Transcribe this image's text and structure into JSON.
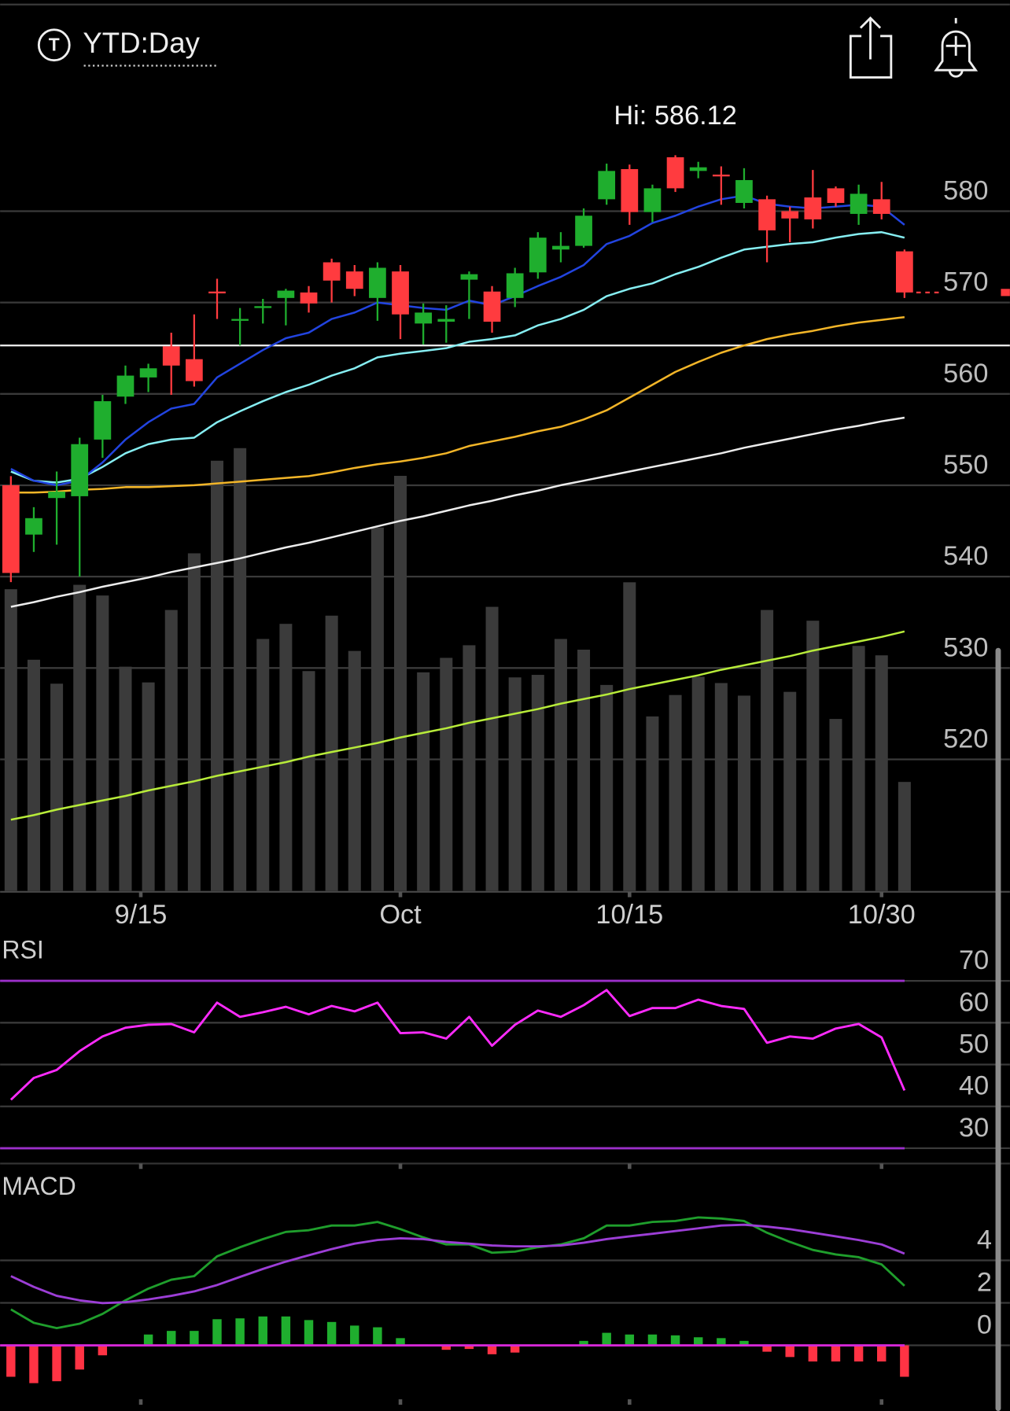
{
  "header": {
    "title": "YTD:Day"
  },
  "chart_data": [
    {
      "type": "candlestick",
      "annotation": "Hi: 586.12",
      "open": [
        550.0,
        544.6,
        548.6,
        548.8,
        555.0,
        559.7,
        561.8,
        565.2,
        563.8,
        571.2,
        568.0,
        569.4,
        570.5,
        571.1,
        574.4,
        573.4,
        570.5,
        573.4,
        567.7,
        567.9,
        572.5,
        571.2,
        570.5,
        573.3,
        575.8,
        576.2,
        581.3,
        584.6,
        579.9,
        585.9,
        584.4,
        584.0,
        580.9,
        581.3,
        580.0,
        581.5,
        582.5,
        579.7,
        581.3,
        575.6
      ],
      "high": [
        551.0,
        547.6,
        551.5,
        555.2,
        559.9,
        563.1,
        563.3,
        566.7,
        568.7,
        572.6,
        569.4,
        570.4,
        571.5,
        571.8,
        574.8,
        574.1,
        574.4,
        574.1,
        569.9,
        569.7,
        573.4,
        571.8,
        573.8,
        577.7,
        577.7,
        580.3,
        585.2,
        585.1,
        582.9,
        586.12,
        585.4,
        584.9,
        584.7,
        581.7,
        580.5,
        584.5,
        582.7,
        582.9,
        583.2,
        575.8
      ],
      "low": [
        539.4,
        542.7,
        543.5,
        540.0,
        553.0,
        558.9,
        560.2,
        559.9,
        560.8,
        568.2,
        565.3,
        567.7,
        567.5,
        568.9,
        570.0,
        570.7,
        568.0,
        566.0,
        565.4,
        565.6,
        568.2,
        566.7,
        569.5,
        572.6,
        574.4,
        576.0,
        580.7,
        578.5,
        578.8,
        582.1,
        583.6,
        580.7,
        580.3,
        574.4,
        576.6,
        578.1,
        580.5,
        578.5,
        579.1,
        570.5
      ],
      "close": [
        540.4,
        546.4,
        549.3,
        554.5,
        559.2,
        562.0,
        562.8,
        563.1,
        561.4,
        571.0,
        568.2,
        569.6,
        571.3,
        569.9,
        572.4,
        571.5,
        573.8,
        568.7,
        568.9,
        568.2,
        573.1,
        567.9,
        573.2,
        577.1,
        576.2,
        579.5,
        584.4,
        579.9,
        582.5,
        582.5,
        584.8,
        583.8,
        583.4,
        577.9,
        579.2,
        579.1,
        580.9,
        581.9,
        579.7,
        571.1
      ],
      "volume": [
        47.9,
        36.7,
        32.9,
        48.6,
        46.9,
        35.6,
        33.1,
        44.6,
        53.6,
        68.3,
        70.3,
        40.0,
        42.4,
        34.9,
        43.7,
        38.1,
        57.7,
        65.9,
        34.7,
        37.0,
        39.0,
        45.1,
        33.9,
        34.3,
        40.0,
        38.3,
        32.7,
        49.0,
        27.7,
        31.1,
        34.0,
        33.0,
        31.0,
        44.6,
        31.6,
        42.9,
        27.3,
        38.9,
        37.4,
        17.3
      ],
      "lines": [
        {
          "color": "#2244e0",
          "values": [
            551.8,
            550.5,
            550.0,
            550.5,
            552.5,
            555.0,
            556.9,
            558.4,
            558.9,
            561.8,
            563.3,
            564.8,
            566.1,
            566.7,
            568.2,
            568.9,
            570.0,
            569.7,
            569.4,
            569.2,
            570.2,
            569.7,
            570.7,
            571.8,
            572.8,
            574.1,
            576.4,
            577.3,
            578.7,
            579.5,
            580.5,
            581.3,
            581.7,
            580.8,
            580.5,
            580.3,
            580.5,
            580.7,
            580.5,
            578.5
          ]
        },
        {
          "color": "#86eef2",
          "values": [
            551.5,
            550.5,
            550.3,
            550.7,
            552.0,
            553.5,
            554.5,
            555.0,
            555.2,
            556.9,
            558.1,
            559.2,
            560.2,
            561.0,
            562.0,
            562.8,
            564.0,
            564.4,
            564.7,
            565.0,
            565.7,
            566.0,
            566.4,
            567.5,
            568.2,
            569.2,
            570.7,
            571.5,
            572.1,
            573.1,
            573.9,
            574.9,
            575.8,
            576.1,
            576.4,
            576.6,
            577.1,
            577.5,
            577.7,
            577.1
          ]
        },
        {
          "color": "#f2b528",
          "values": [
            549.2,
            549.2,
            549.3,
            549.5,
            549.6,
            549.8,
            549.8,
            549.9,
            550.0,
            550.2,
            550.4,
            550.6,
            550.8,
            551.0,
            551.4,
            551.9,
            552.3,
            552.6,
            553.0,
            553.5,
            554.3,
            554.8,
            555.3,
            555.9,
            556.4,
            557.2,
            558.2,
            559.6,
            561.0,
            562.4,
            563.5,
            564.5,
            565.3,
            566.0,
            566.5,
            566.9,
            567.4,
            567.8,
            568.1,
            568.4
          ]
        },
        {
          "color": "#ececec",
          "values": [
            536.7,
            537.2,
            537.8,
            538.3,
            538.9,
            539.4,
            539.9,
            540.5,
            541.0,
            541.5,
            542.0,
            542.6,
            543.2,
            543.7,
            544.3,
            544.9,
            545.5,
            546.1,
            546.6,
            547.2,
            547.8,
            548.3,
            548.9,
            549.4,
            550.0,
            550.5,
            551.0,
            551.5,
            552.0,
            552.5,
            553.0,
            553.5,
            554.1,
            554.6,
            555.1,
            555.6,
            556.1,
            556.5,
            557.0,
            557.4
          ]
        },
        {
          "color": "#b8ec3a",
          "values": [
            513.4,
            513.9,
            514.5,
            515.0,
            515.5,
            516.0,
            516.6,
            517.1,
            517.6,
            518.2,
            518.7,
            519.2,
            519.7,
            520.3,
            520.8,
            521.3,
            521.8,
            522.4,
            522.9,
            523.4,
            524.0,
            524.5,
            525.0,
            525.5,
            526.1,
            526.6,
            527.1,
            527.7,
            528.2,
            528.7,
            529.2,
            529.8,
            530.3,
            530.8,
            531.3,
            531.9,
            532.4,
            532.9,
            533.4,
            534.0
          ]
        }
      ],
      "hline": 565.3,
      "up_color": "#1fae2e",
      "down_color": "#ff3b3f",
      "volume_color": "#3b3b3b",
      "xlim": [
        -0.47,
        43.6
      ],
      "xticks": [
        {
          "value": 5.67,
          "label": "9/15"
        },
        {
          "value": 17,
          "label": "Oct"
        },
        {
          "value": 27,
          "label": "10/15"
        },
        {
          "value": 38,
          "label": "10/30"
        }
      ],
      "ylim": [
        506,
        592
      ],
      "yticks": [
        520,
        530,
        540,
        550,
        560,
        570,
        580
      ],
      "grid": true
    },
    {
      "type": "line",
      "title": "RSI",
      "color": "#ff2bff",
      "values": [
        41.6,
        46.8,
        48.7,
        53.2,
        56.7,
        58.8,
        59.5,
        59.7,
        57.7,
        64.8,
        61.4,
        62.5,
        63.8,
        62.0,
        64.0,
        62.7,
        64.8,
        57.5,
        57.7,
        56.2,
        61.4,
        54.5,
        59.5,
        62.9,
        61.4,
        64.2,
        67.8,
        61.6,
        63.5,
        63.5,
        65.5,
        64.0,
        63.3,
        55.2,
        56.7,
        56.2,
        58.6,
        59.7,
        56.5,
        43.8
      ],
      "levels": [
        70,
        30
      ],
      "level_color": "#9b2fc9",
      "ylim": [
        26,
        80
      ],
      "yticks": [
        30,
        40,
        50,
        60,
        70
      ],
      "grid": true
    },
    {
      "type": "macd",
      "title": "MACD",
      "lines": [
        {
          "color": "#1f9e2c",
          "values": [
            1.69,
            1.06,
            0.81,
            1.02,
            1.48,
            2.12,
            2.67,
            3.09,
            3.26,
            4.19,
            4.62,
            5.0,
            5.34,
            5.42,
            5.64,
            5.64,
            5.81,
            5.47,
            5.08,
            4.75,
            4.75,
            4.36,
            4.41,
            4.62,
            4.75,
            5.04,
            5.64,
            5.64,
            5.81,
            5.85,
            6.02,
            5.97,
            5.85,
            5.3,
            4.87,
            4.49,
            4.28,
            4.15,
            3.81,
            2.8
          ]
        },
        {
          "color": "#9c3ed6",
          "values": [
            3.26,
            2.75,
            2.33,
            2.12,
            1.99,
            2.03,
            2.16,
            2.33,
            2.54,
            2.84,
            3.22,
            3.6,
            3.94,
            4.24,
            4.53,
            4.79,
            4.96,
            5.04,
            5.0,
            4.87,
            4.79,
            4.7,
            4.66,
            4.66,
            4.7,
            4.83,
            5.0,
            5.13,
            5.25,
            5.38,
            5.51,
            5.64,
            5.68,
            5.59,
            5.47,
            5.3,
            5.13,
            4.96,
            4.75,
            4.32
          ]
        }
      ],
      "histogram": [
        -1.48,
        -1.78,
        -1.69,
        -1.14,
        -0.47,
        0.04,
        0.51,
        0.68,
        0.68,
        1.23,
        1.27,
        1.36,
        1.36,
        1.19,
        1.1,
        0.93,
        0.85,
        0.34,
        0.04,
        -0.21,
        -0.17,
        -0.42,
        -0.34,
        0.0,
        0.0,
        0.21,
        0.59,
        0.51,
        0.51,
        0.47,
        0.38,
        0.34,
        0.21,
        -0.3,
        -0.55,
        -0.76,
        -0.76,
        -0.76,
        -0.76,
        -1.48
      ],
      "up_color": "#1fae2e",
      "down_color": "#ff3344",
      "zero_color": "#d627d6",
      "ylim": [
        -3.1,
        8
      ],
      "yticks": [
        0,
        2,
        4
      ],
      "grid": true
    }
  ]
}
